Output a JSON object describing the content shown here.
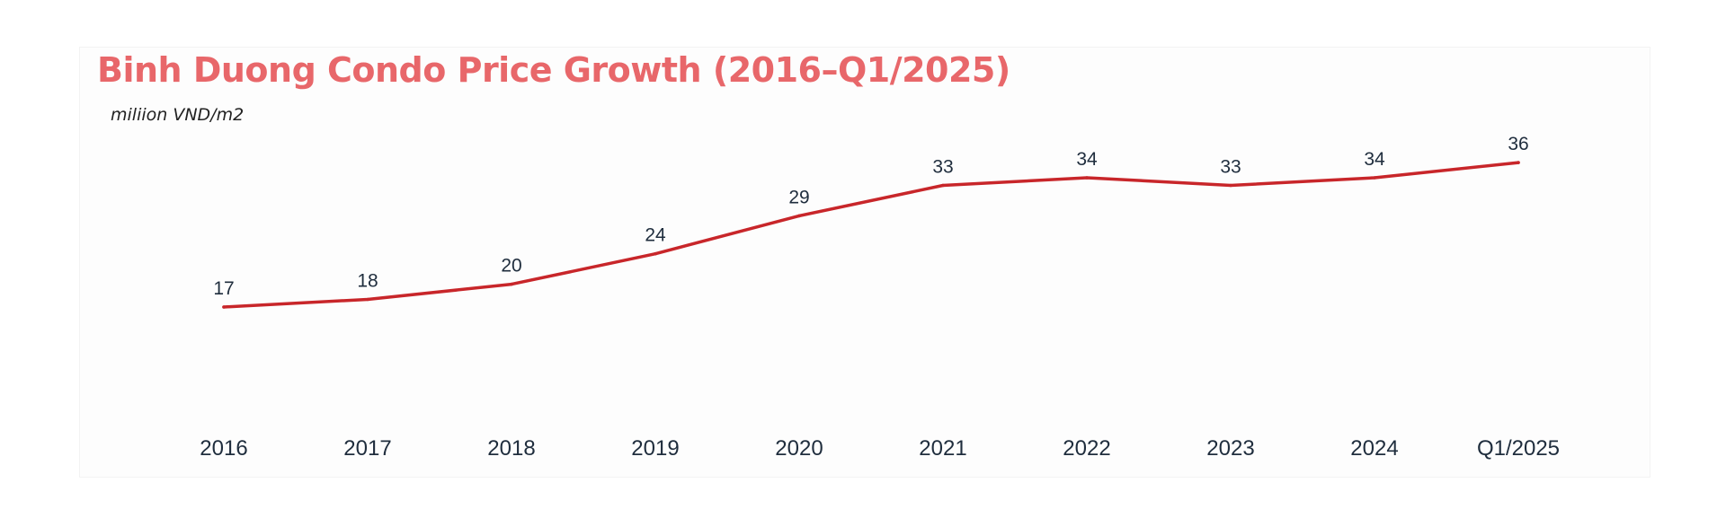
{
  "title": "Binh Duong Condo Price Growth (2016–Q1/2025)",
  "unit_label": "miliion VND/m2",
  "colors": {
    "title": "#e8676a",
    "line": "#c8262a",
    "text": "#1f2d3d"
  },
  "chart_data": {
    "type": "line",
    "title": "Binh Duong Condo Price Growth (2016–Q1/2025)",
    "ylabel": "miliion VND/m2",
    "xlabel": "",
    "categories": [
      "2016",
      "2017",
      "2018",
      "2019",
      "2020",
      "2021",
      "2022",
      "2023",
      "2024",
      "Q1/2025"
    ],
    "series": [
      {
        "values": [
          17,
          18,
          20,
          24,
          29,
          33,
          34,
          33,
          34,
          36
        ]
      }
    ],
    "data_labels": [
      "17",
      "18",
      "20",
      "24",
      "29",
      "33",
      "34",
      "33",
      "34",
      "36"
    ],
    "ylim": [
      0,
      36
    ],
    "grid": false,
    "legend": "none"
  }
}
